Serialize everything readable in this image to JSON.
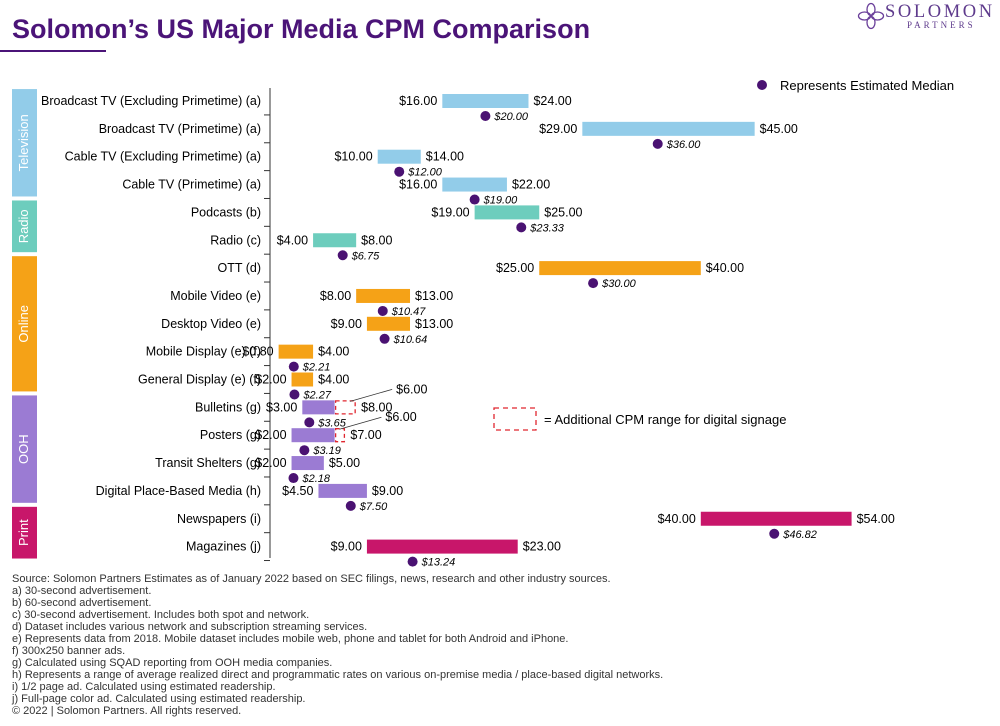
{
  "page": {
    "title": "Solomon’s US Major Media CPM Comparison",
    "logo_name": "SOLOMON",
    "logo_sub": "PARTNERS",
    "legend_median": "Represents Estimated Median",
    "legend_signage": "= Additional CPM range for digital signage",
    "footnotes": [
      "Source: Solomon Partners Estimates as of January 2022 based on SEC filings, news, research and other industry sources.",
      "a) 30-second advertisement.",
      "b) 60-second advertisement.",
      "c) 30-second advertisement. Includes both spot and network.",
      "d) Dataset includes various network and subscription streaming services.",
      "e) Represents data from 2018. Mobile dataset includes mobile web, phone and tablet for both Android and iPhone.",
      "f) 300x250 banner ads.",
      "g) Calculated using SQAD reporting from OOH media companies.",
      "h) Represents a range of average realized direct and programmatic rates on various on-premise media / place-based digital networks.",
      "i) 1/2 page ad. Calculated using estimated readership.",
      "j) Full-page color ad. Calculated using estimated readership.",
      "© 2022 | Solomon Partners. All rights reserved."
    ]
  },
  "chart_data": {
    "type": "range-bar",
    "title": "Solomon’s US Major Media CPM Comparison",
    "x_range": [
      0,
      56
    ],
    "groups": [
      {
        "name": "Television",
        "color": "#92cce9"
      },
      {
        "name": "Radio",
        "color": "#6dcdbd"
      },
      {
        "name": "Online",
        "color": "#f5a217"
      },
      {
        "name": "OOH",
        "color": "#9b7bd3"
      },
      {
        "name": "Print",
        "color": "#c8166a"
      }
    ],
    "median_color": "#4a1272",
    "signage_color": "#e0262f",
    "rows": [
      {
        "label": "Broadcast TV (Excluding Primetime) (a)",
        "group": "Television",
        "low": 16.0,
        "high": 24.0,
        "low_label": "$16.00",
        "high_label": "$24.00",
        "median": 20.0,
        "median_label": "$20.00"
      },
      {
        "label": "Broadcast TV (Primetime) (a)",
        "group": "Television",
        "low": 29.0,
        "high": 45.0,
        "low_label": "$29.00",
        "high_label": "$45.00",
        "median": 36.0,
        "median_label": "$36.00"
      },
      {
        "label": "Cable TV (Excluding Primetime) (a)",
        "group": "Television",
        "low": 10.0,
        "high": 14.0,
        "low_label": "$10.00",
        "high_label": "$14.00",
        "median": 12.0,
        "median_label": "$12.00"
      },
      {
        "label": "Cable TV (Primetime) (a)",
        "group": "Television",
        "low": 16.0,
        "high": 22.0,
        "low_label": "$16.00",
        "high_label": "$22.00",
        "median": 19.0,
        "median_label": "$19.00"
      },
      {
        "label": "Podcasts (b)",
        "group": "Radio",
        "low": 19.0,
        "high": 25.0,
        "low_label": "$19.00",
        "high_label": "$25.00",
        "median": 23.33,
        "median_label": "$23.33"
      },
      {
        "label": "Radio (c)",
        "group": "Radio",
        "low": 4.0,
        "high": 8.0,
        "low_label": "$4.00",
        "high_label": "$8.00",
        "median": 6.75,
        "median_label": "$6.75"
      },
      {
        "label": "OTT (d)",
        "group": "Online",
        "low": 25.0,
        "high": 40.0,
        "low_label": "$25.00",
        "high_label": "$40.00",
        "median": 30.0,
        "median_label": "$30.00"
      },
      {
        "label": "Mobile Video (e)",
        "group": "Online",
        "low": 8.0,
        "high": 13.0,
        "low_label": "$8.00",
        "high_label": "$13.00",
        "median": 10.47,
        "median_label": "$10.47"
      },
      {
        "label": "Desktop Video (e)",
        "group": "Online",
        "low": 9.0,
        "high": 13.0,
        "low_label": "$9.00",
        "high_label": "$13.00",
        "median": 10.64,
        "median_label": "$10.64"
      },
      {
        "label": "Mobile Display (e) (f)",
        "group": "Online",
        "low": 0.8,
        "high": 4.0,
        "low_label": "$0.80",
        "high_label": "$4.00",
        "median": 2.21,
        "median_label": "$2.21"
      },
      {
        "label": "General Display (e) (f)",
        "group": "Online",
        "low": 2.0,
        "high": 4.0,
        "low_label": "$2.00",
        "high_label": "$4.00",
        "median": 2.27,
        "median_label": "$2.27"
      },
      {
        "label": "Bulletins (g)",
        "group": "OOH",
        "low": 3.0,
        "high": 6.0,
        "low_label": "$3.00",
        "high_label": "$8.00",
        "median": 3.65,
        "median_label": "$3.65",
        "signage_high": 8.0,
        "signage_label": "$6.00"
      },
      {
        "label": "Posters (g)",
        "group": "OOH",
        "low": 2.0,
        "high": 6.0,
        "low_label": "$2.00",
        "high_label": "$7.00",
        "median": 3.19,
        "median_label": "$3.19",
        "signage_high": 7.0,
        "signage_label": "$6.00"
      },
      {
        "label": "Transit Shelters (g)",
        "group": "OOH",
        "low": 2.0,
        "high": 5.0,
        "low_label": "$2.00",
        "high_label": "$5.00",
        "median": 2.18,
        "median_label": "$2.18"
      },
      {
        "label": "Digital Place-Based Media (h)",
        "group": "OOH",
        "low": 4.5,
        "high": 9.0,
        "low_label": "$4.50",
        "high_label": "$9.00",
        "median": 7.5,
        "median_label": "$7.50"
      },
      {
        "label": "Newspapers (i)",
        "group": "Print",
        "low": 40.0,
        "high": 54.0,
        "low_label": "$40.00",
        "high_label": "$54.00",
        "median": 46.82,
        "median_label": "$46.82"
      },
      {
        "label": "Magazines (j)",
        "group": "Print",
        "low": 9.0,
        "high": 23.0,
        "low_label": "$9.00",
        "high_label": "$23.00",
        "median": 13.24,
        "median_label": "$13.24"
      }
    ]
  }
}
